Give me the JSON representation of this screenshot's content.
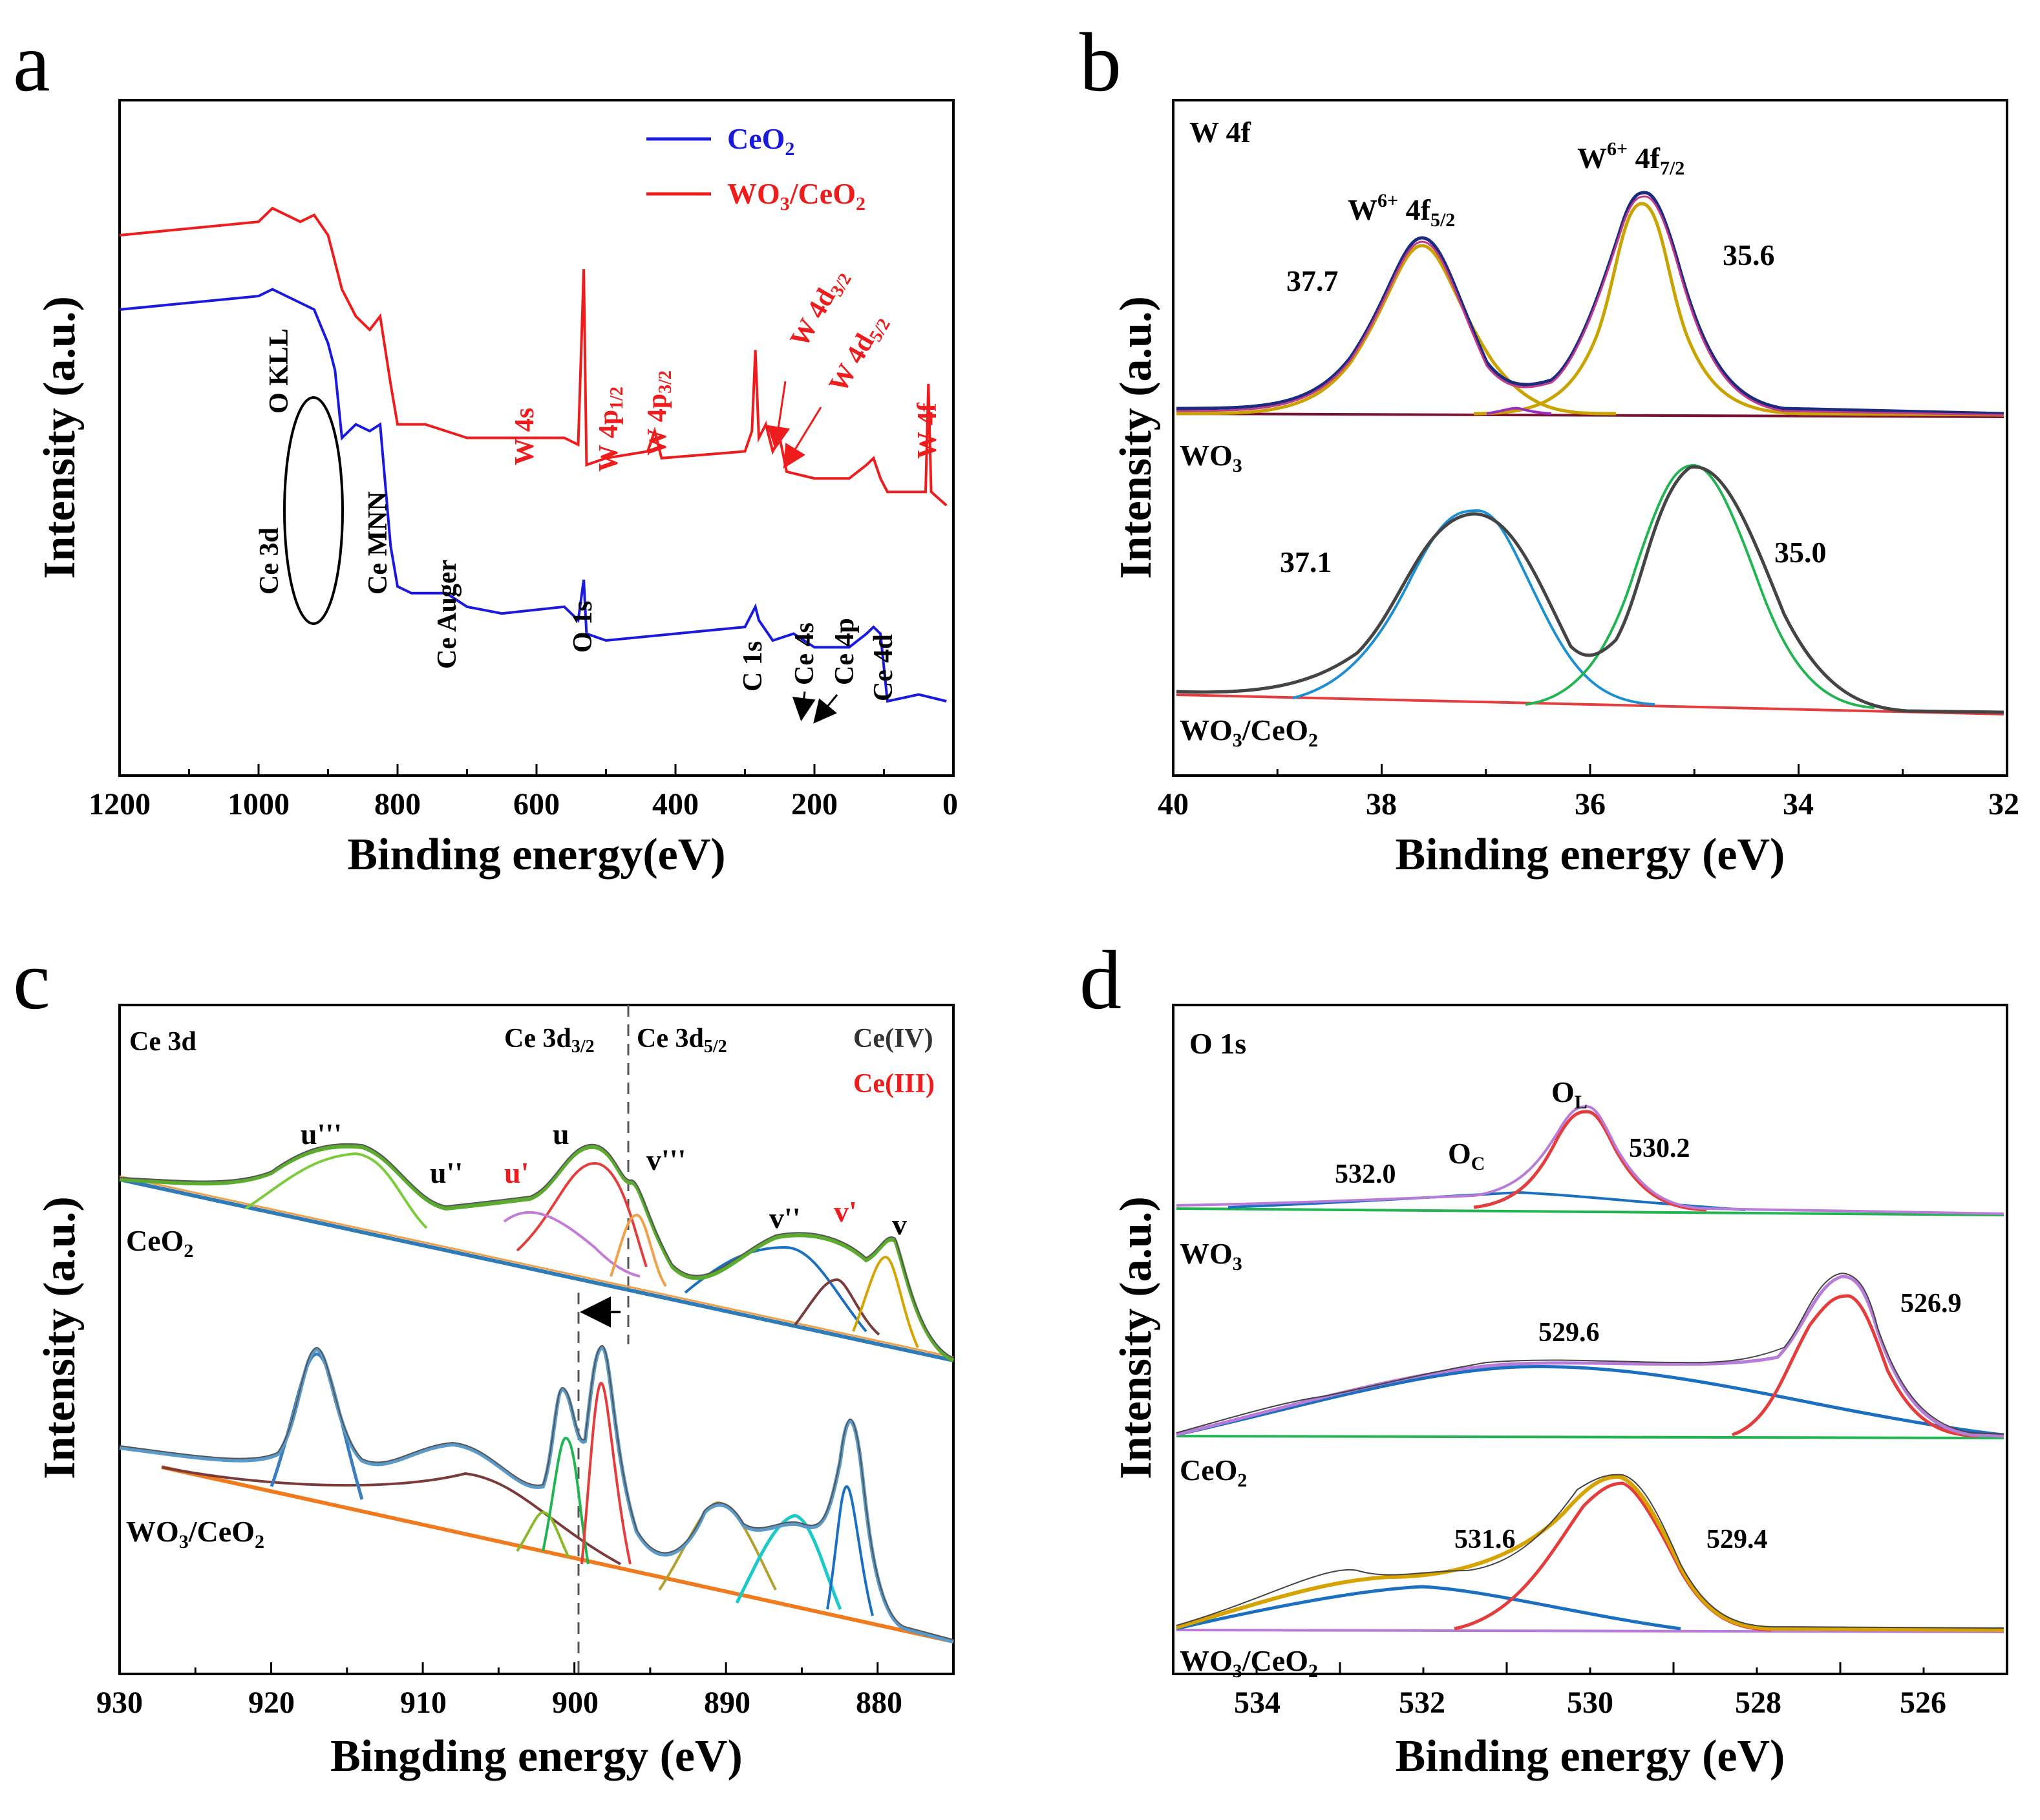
{
  "figure": {
    "panels": [
      {
        "letter": "a",
        "ylabel": "Intensity (a.u.)",
        "xlabel": "Binding energy(eV)",
        "xticks": [
          "1200",
          "1000",
          "800",
          "600",
          "400",
          "200",
          "0"
        ],
        "legend": [
          {
            "label": "CeO",
            "sub": "2",
            "color": "#1a1adf"
          },
          {
            "label": "WO",
            "sub": "3",
            "label2": "/CeO",
            "sub2": "2",
            "color": "#ee1c1c"
          }
        ],
        "labels": {
          "okll": "O KLL",
          "ce3d": "Ce 3d",
          "cemnn": "Ce MNN",
          "ceauger": "Ce Auger",
          "o1s": "O 1s",
          "c1s": "C 1s",
          "ce4s": "Ce 4s",
          "ce4p": "Ce 4p",
          "ce4d": "Ce 4d",
          "w4s": "W 4s",
          "w4p12": "W 4p",
          "w4p12_sub": "1/2",
          "w4p32": "W 4p",
          "w4p32_sub": "3/2",
          "w4d32": "W 4d",
          "w4d32_sub": "3/2",
          "w4d52": "W 4d",
          "w4d52_sub": "5/2",
          "w4f": "W 4f"
        }
      },
      {
        "letter": "b",
        "ylabel": "Intensity (a.u.)",
        "xlabel": "Binding energy (eV)",
        "xticks": [
          "40",
          "38",
          "36",
          "34",
          "32"
        ],
        "labels": {
          "title": "W 4f",
          "peak1": "W",
          "peak1_sup": "6+",
          "peak1_tail": " 4f",
          "peak1_sub": "5/2",
          "peak2": "W",
          "peak2_sup": "6+",
          "peak2_tail": " 4f",
          "peak2_sub": "7/2",
          "v377": "37.7",
          "v356": "35.6",
          "v371": "37.1",
          "v350": "35.0",
          "wo3": "WO",
          "wo3_sub": "3",
          "wo3ceo2": "WO",
          "wo3ceo2_sub": "3",
          "wo3ceo2_tail": "/CeO",
          "wo3ceo2_sub2": "2"
        }
      },
      {
        "letter": "c",
        "ylabel": "Intensity (a.u.)",
        "xlabel": "Bingding energy (eV)",
        "xticks": [
          "930",
          "920",
          "910",
          "900",
          "890",
          "880"
        ],
        "labels": {
          "title": "Ce 3d",
          "ce3d32": "Ce 3d",
          "ce3d32_sub": "3/2",
          "ce3d52": "Ce 3d",
          "ce3d52_sub": "5/2",
          "ceiv": "Ce(IV)",
          "ceiii": "Ce(III)",
          "u3": "u'''",
          "u2": "u''",
          "u1": "u'",
          "u0": "u",
          "v3": "v'''",
          "v2": "v''",
          "v1": "v'",
          "v0": "v",
          "ceo2": "CeO",
          "ceo2_sub": "2",
          "wo3ceo2": "WO",
          "wo3ceo2_sub": "3",
          "wo3ceo2_tail": "/CeO",
          "wo3ceo2_sub2": "2"
        }
      },
      {
        "letter": "d",
        "ylabel": "Intensity (a.u.)",
        "xlabel": "Binding energy (eV)",
        "xticks": [
          "534",
          "532",
          "530",
          "528",
          "526"
        ],
        "labels": {
          "title": "O 1s",
          "ol": "O",
          "ol_sub": "L",
          "oc": "O",
          "oc_sub": "C",
          "v5320": "532.0",
          "v5302": "530.2",
          "v5296": "529.6",
          "v5269": "526.9",
          "v5316": "531.6",
          "v5294": "529.4",
          "wo3": "WO",
          "wo3_sub": "3",
          "ceo2": "CeO",
          "ceo2_sub": "2",
          "wo3ceo2": "WO",
          "wo3ceo2_sub": "3",
          "wo3ceo2_tail": "/CeO",
          "wo3ceo2_sub2": "2"
        }
      }
    ]
  },
  "chart_data": [
    {
      "type": "line",
      "title": "a",
      "xlabel": "Binding energy(eV)",
      "ylabel": "Intensity (a.u.)",
      "xlim": [
        1200,
        0
      ],
      "series": [
        {
          "name": "CeO2",
          "color": "#1a1adf",
          "x": [
            1200,
            1000,
            980,
            940,
            920,
            900,
            890,
            880,
            860,
            840,
            825,
            810,
            800,
            780,
            730,
            700,
            650,
            560,
            540,
            532,
            528,
            500,
            400,
            300,
            290,
            285,
            280,
            260,
            230,
            200,
            150,
            125,
            115,
            105,
            95,
            50,
            10
          ],
          "y": [
            0.69,
            0.71,
            0.72,
            0.7,
            0.69,
            0.64,
            0.6,
            0.5,
            0.52,
            0.51,
            0.52,
            0.34,
            0.28,
            0.27,
            0.27,
            0.25,
            0.24,
            0.25,
            0.23,
            0.29,
            0.21,
            0.2,
            0.21,
            0.22,
            0.24,
            0.25,
            0.23,
            0.2,
            0.21,
            0.19,
            0.19,
            0.21,
            0.22,
            0.21,
            0.11,
            0.12,
            0.11
          ]
        },
        {
          "name": "WO3/CeO2",
          "color": "#ee1c1c",
          "x": [
            1200,
            1000,
            980,
            940,
            920,
            900,
            890,
            880,
            860,
            840,
            825,
            810,
            800,
            760,
            700,
            600,
            560,
            540,
            532,
            528,
            500,
            440,
            430,
            420,
            300,
            290,
            285,
            280,
            270,
            260,
            255,
            250,
            240,
            200,
            150,
            125,
            115,
            105,
            95,
            60,
            40,
            36,
            32,
            10
          ],
          "y": [
            0.8,
            0.82,
            0.84,
            0.82,
            0.83,
            0.8,
            0.76,
            0.72,
            0.68,
            0.66,
            0.68,
            0.58,
            0.52,
            0.52,
            0.5,
            0.5,
            0.5,
            0.49,
            0.75,
            0.46,
            0.47,
            0.48,
            0.51,
            0.47,
            0.48,
            0.51,
            0.63,
            0.5,
            0.52,
            0.48,
            0.49,
            0.5,
            0.45,
            0.44,
            0.44,
            0.46,
            0.47,
            0.44,
            0.42,
            0.42,
            0.42,
            0.58,
            0.42,
            0.4
          ]
        }
      ]
    },
    {
      "type": "line",
      "title": "b",
      "xlabel": "Binding energy (eV)",
      "ylabel": "Intensity (a.u.)",
      "xlim": [
        40,
        32
      ],
      "series": [
        {
          "name": "WO3",
          "peaks_eV": [
            37.7,
            35.6
          ]
        },
        {
          "name": "WO3/CeO2",
          "peaks_eV": [
            37.1,
            35.0
          ]
        }
      ]
    },
    {
      "type": "line",
      "title": "c",
      "xlabel": "Bingding energy (eV)",
      "ylabel": "Intensity (a.u.)",
      "xlim": [
        930,
        875
      ],
      "series": [
        {
          "name": "CeO2",
          "peaks_eV": [
            914.5,
            907.0,
            903.0,
            898.5,
            895.5,
            886.0,
            882.5,
            880.0
          ]
        },
        {
          "name": "WO3/CeO2",
          "peaks_eV": [
            916.5,
            907.0,
            901.0,
            898.0,
            888.5,
            883.5,
            882.2
          ]
        }
      ]
    },
    {
      "type": "line",
      "title": "d",
      "xlabel": "Binding energy (eV)",
      "ylabel": "Intensity (a.u.)",
      "xlim": [
        535,
        525
      ],
      "series": [
        {
          "name": "WO3",
          "peaks_eV": [
            532.0,
            530.2
          ]
        },
        {
          "name": "CeO2",
          "peaks_eV": [
            529.6,
            526.9
          ]
        },
        {
          "name": "WO3/CeO2",
          "peaks_eV": [
            531.6,
            529.4
          ]
        }
      ]
    }
  ]
}
